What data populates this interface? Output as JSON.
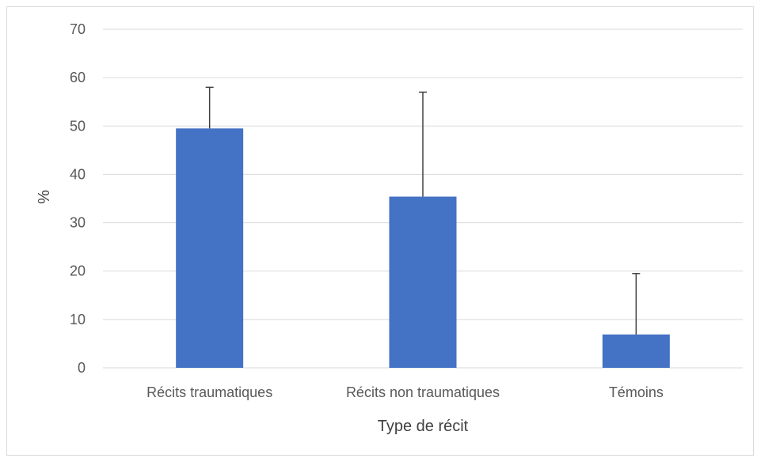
{
  "chart_data": {
    "type": "bar",
    "title": "",
    "xlabel": "Type de récit",
    "ylabel": "%",
    "categories": [
      "Récits traumatiques",
      "Récits non traumatiques",
      "Témoins"
    ],
    "values": [
      49.5,
      35.4,
      6.9
    ],
    "error_upper": [
      58.0,
      57.0,
      19.5
    ],
    "ylim": [
      0,
      70
    ],
    "yticks": [
      0,
      10,
      20,
      30,
      40,
      50,
      60,
      70
    ],
    "grid": true,
    "legend": "none",
    "colors": {
      "bar": "#4472C4",
      "grid": "#d9d9d9",
      "error": "#404040",
      "axis": "#d9d9d9"
    }
  }
}
